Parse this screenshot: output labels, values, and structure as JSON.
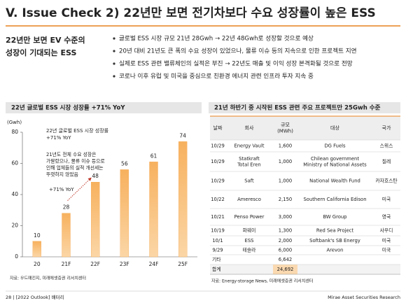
{
  "header": {
    "title": "V. Issue Check 2) 22년만 보면 전기차보다 수요 성장률이 높은 ESS"
  },
  "highlight": [
    "22년만 보면 EV 수준의",
    "성장이 기대되는 ESS"
  ],
  "bullets": [
    "글로벌 ESS 시장 규모 21년 28Gwh → 22년 48Gwh로 성장할 것으로 예상",
    "20년 대비 21년도 큰 폭의 수요 성장이 있었으나, 물류 이슈 등의 지속으로 인한 프로젝트 지연",
    "실제로 ESS 관련 밸류체인의 실적은 부진 → 22년도 매출 및 이익 성장 본격화될 것으로 전망",
    "코로나 이후 유럽 및 미국을 중심으로 친환경 에너지 관련 인프라 투자 지속 중"
  ],
  "chart_panel_title": "22년 글로벌 ESS 시장 성장률 +71% YoY",
  "chart_data": {
    "type": "bar",
    "y_label": "(Gwh)",
    "categories": [
      "20",
      "21F",
      "22F",
      "23F",
      "24F",
      "25F"
    ],
    "values": [
      10,
      28,
      48,
      56,
      61,
      74
    ],
    "color": "#f39c3c",
    "ylim": [
      0,
      80
    ],
    "yticks": [
      0,
      20,
      40,
      60,
      80
    ],
    "annotations": {
      "growth_note": [
        "22년 글로벌 ESS 시장 성장률",
        "+71% YoY"
      ],
      "delay_note": [
        "21년도 전체 수요 성장은",
        "가팔랐으나, 물류 이슈 등으로",
        "인해 업체들의 실적 개선세는",
        "뚜렷하지 않았음"
      ],
      "arrow_label": "+71% YoY"
    },
    "source": "자료: 우드매킨지, 미래에셋증권 리서치센터"
  },
  "table": {
    "title": "21년 하반기 중 시작된 ESS 관련 주요 프로젝트만 25Gwh 수준",
    "columns": [
      "날짜",
      "회사",
      [
        "규모",
        "(MWh)"
      ],
      "대상",
      "국가"
    ],
    "rows": [
      [
        "10/29",
        "Energy Vault",
        "1,600",
        "DG Fuels",
        "스위스"
      ],
      [
        "10/29",
        [
          "Statkraft",
          "Total Eren"
        ],
        "1,000",
        [
          "Chilean government",
          "Ministry of National Assets"
        ],
        "칠레"
      ],
      [
        "10/29",
        "Saft",
        "1,000",
        "National Wealth Fund",
        "카자흐스탄"
      ],
      [
        "10/22",
        "Ameresco",
        "2,150",
        "Southern California Edison",
        "미국"
      ],
      [
        "10/21",
        "Penso Power",
        "3,000",
        "BW Group",
        "영국"
      ],
      [
        "10/19",
        "화웨이",
        "1,300",
        "Red Sea Project",
        "사우디"
      ],
      [
        "10/1",
        "ESS",
        "2,000",
        "Softbank's SB Energy",
        "미국"
      ],
      [
        "9/29",
        "테슬라",
        "6,000",
        "Arevon",
        "미국"
      ]
    ],
    "summary": [
      [
        "기타",
        "6,642"
      ],
      [
        "합계",
        "24,692"
      ]
    ],
    "source": "자료: Energy-storage News, 미래에셋증권 리서치센터"
  },
  "footer": {
    "page": "28 | [2022 Outlook] 배터리",
    "firm": "Mirae Asset Securities Research"
  }
}
